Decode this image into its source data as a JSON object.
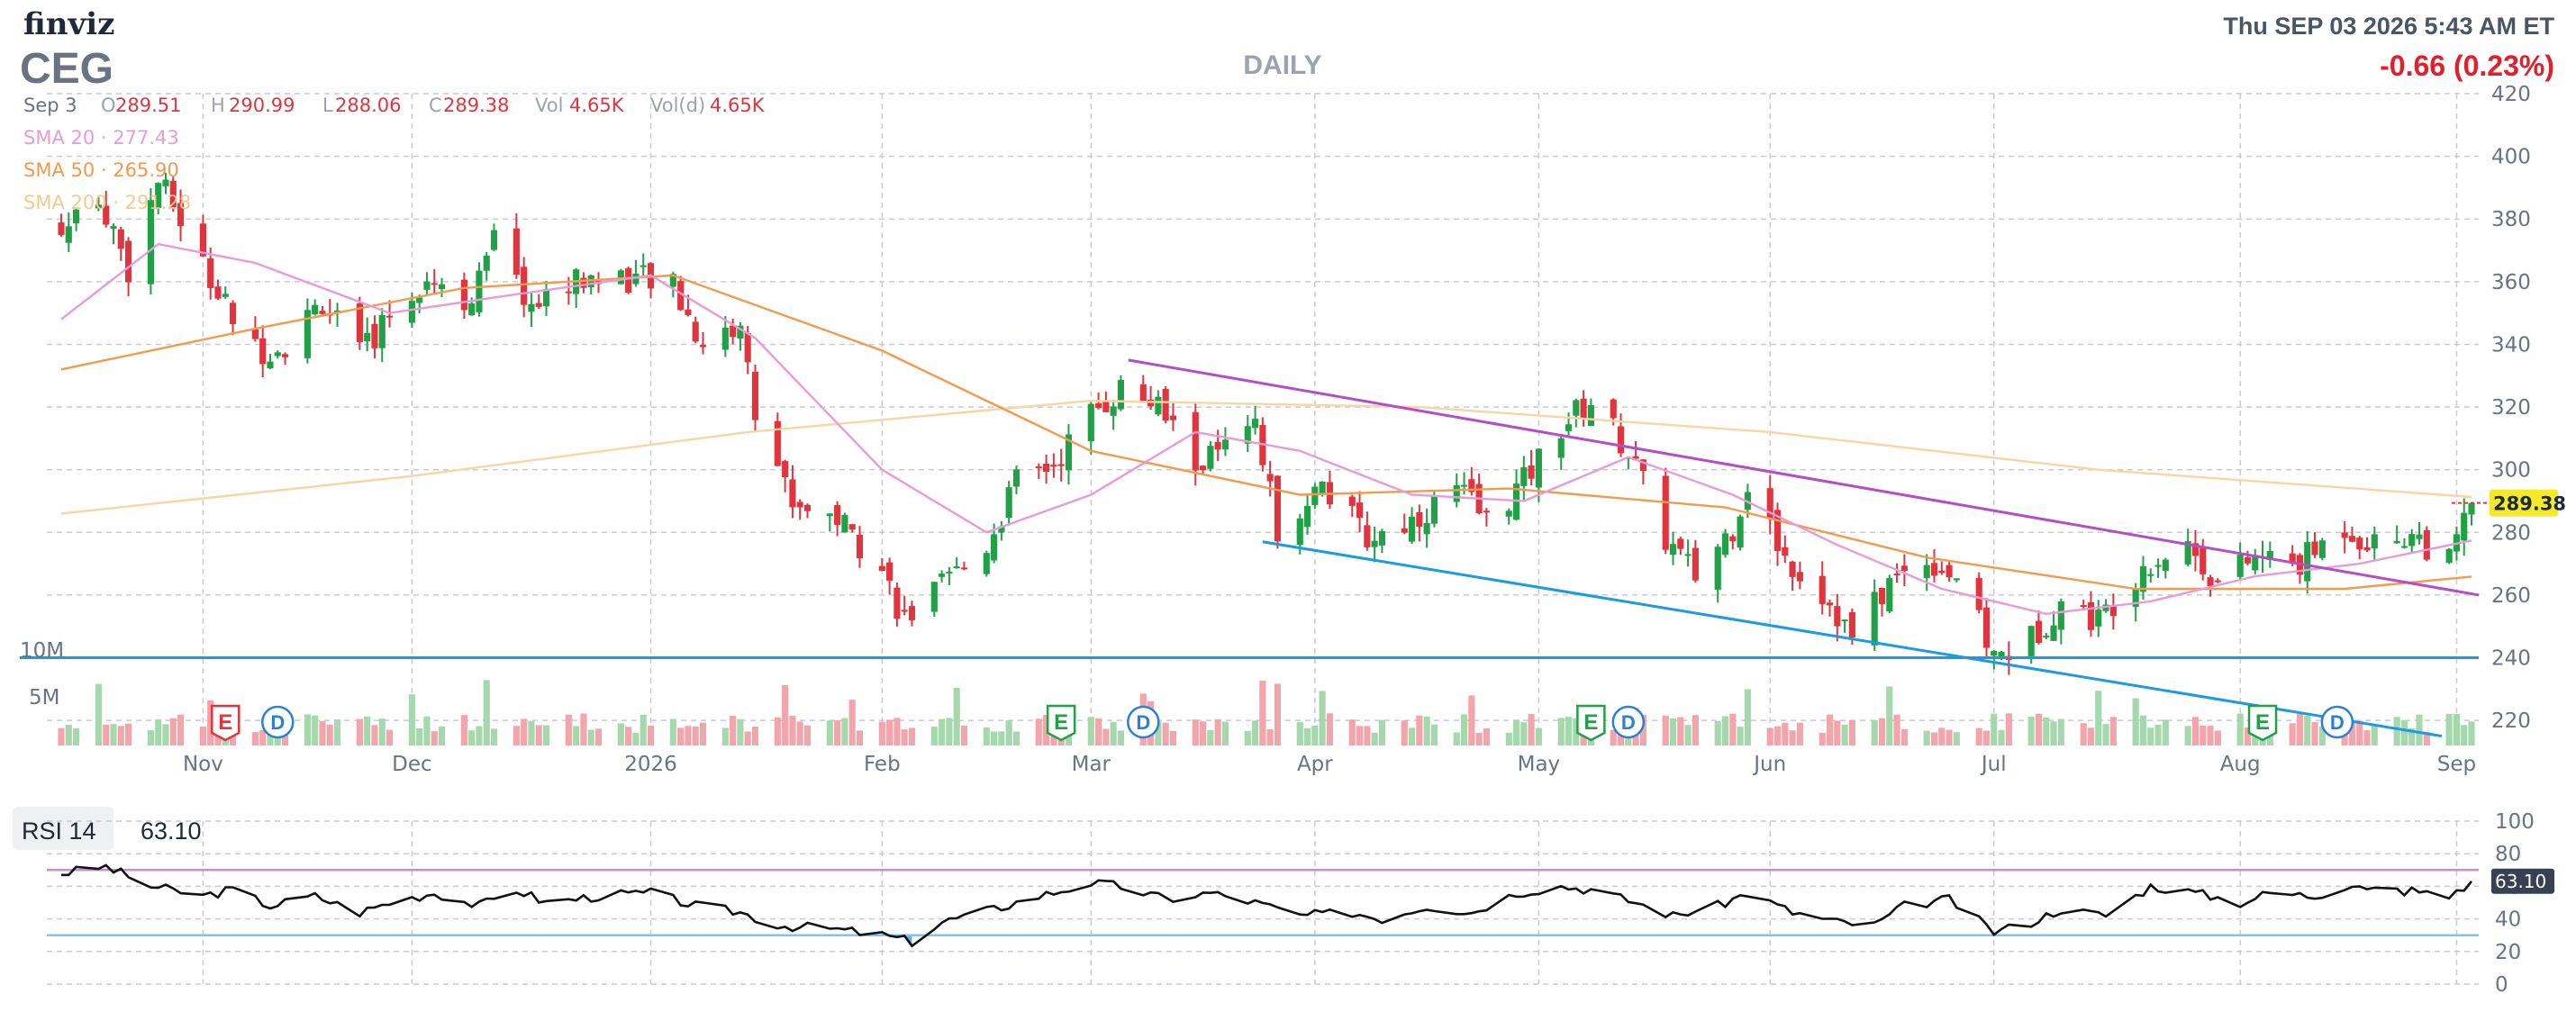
{
  "header": {
    "brand": "finviz",
    "ticker": "CEG",
    "period": "DAILY",
    "datetime": "Thu SEP 03 2026 5:43 AM ET",
    "change": "-0.66 (0.23%)"
  },
  "ohlc": {
    "date": "Sep 3",
    "open_label": "O",
    "open": "289.51",
    "high_label": "H",
    "high": "290.99",
    "low_label": "L",
    "low": "288.06",
    "close_label": "C",
    "close": "289.38",
    "vol_label": "Vol",
    "vol": "4.65K",
    "vold_label": "Vol(d)",
    "vold": "4.65K"
  },
  "sma": [
    {
      "label": "SMA 20",
      "value": "277.43",
      "color": "#e79bd8"
    },
    {
      "label": "SMA 50",
      "value": "265.90",
      "color": "#f29a4e"
    },
    {
      "label": "SMA 200",
      "value": "291.28",
      "color": "#f7d6a3"
    }
  ],
  "rsi": {
    "label": "RSI 14",
    "value": "63.10"
  },
  "colors": {
    "up": "#22a047",
    "down": "#e0353f",
    "vol_up": "#a6d8ae",
    "vol_down": "#f2a5ab",
    "upper_trend": "#b44ec6",
    "lower_trend": "#1e9be0",
    "rsi_line": "#111111",
    "rsi_upper": "#c58fd4",
    "rsi_lower": "#7cc6ea",
    "last_price_bg": "#f5ea2a"
  },
  "chart_data": [
    {
      "type": "candlestick",
      "title": "CEG",
      "subtitle": "DAILY",
      "ylim": [
        212,
        420
      ],
      "y_ticks": [
        420,
        400,
        380,
        360,
        340,
        320,
        300,
        280,
        260,
        240,
        220
      ],
      "x_ticks": [
        {
          "label": "Nov",
          "date": "2025-11-03"
        },
        {
          "label": "Dec",
          "date": "2025-12-01"
        },
        {
          "label": "2026",
          "date": "2026-01-02"
        },
        {
          "label": "Feb",
          "date": "2026-02-02"
        },
        {
          "label": "Mar",
          "date": "2026-03-02"
        },
        {
          "label": "Apr",
          "date": "2026-04-01"
        },
        {
          "label": "May",
          "date": "2026-05-01"
        },
        {
          "label": "Jun",
          "date": "2026-06-01"
        },
        {
          "label": "Jul",
          "date": "2026-07-01"
        },
        {
          "label": "Aug",
          "date": "2026-08-03"
        },
        {
          "label": "Sep",
          "date": "2026-09-01"
        }
      ],
      "price_path": [
        {
          "date": "2025-10-15",
          "close": 375
        },
        {
          "date": "2025-10-20",
          "close": 388
        },
        {
          "date": "2025-10-24",
          "close": 364
        },
        {
          "date": "2025-10-28",
          "close": 392
        },
        {
          "date": "2025-10-31",
          "close": 380
        },
        {
          "date": "2025-11-05",
          "close": 356
        },
        {
          "date": "2025-11-10",
          "close": 338
        },
        {
          "date": "2025-11-14",
          "close": 340
        },
        {
          "date": "2025-11-19",
          "close": 354
        },
        {
          "date": "2025-11-24",
          "close": 336
        },
        {
          "date": "2025-11-28",
          "close": 350
        },
        {
          "date": "2025-12-03",
          "close": 362
        },
        {
          "date": "2025-12-09",
          "close": 354
        },
        {
          "date": "2025-12-12",
          "close": 372
        },
        {
          "date": "2025-12-17",
          "close": 352
        },
        {
          "date": "2025-12-22",
          "close": 360
        },
        {
          "date": "2025-12-29",
          "close": 362
        },
        {
          "date": "2026-01-05",
          "close": 358
        },
        {
          "date": "2026-01-09",
          "close": 340
        },
        {
          "date": "2026-01-14",
          "close": 346
        },
        {
          "date": "2026-01-16",
          "close": 318
        },
        {
          "date": "2026-01-21",
          "close": 290
        },
        {
          "date": "2026-01-27",
          "close": 285
        },
        {
          "date": "2026-02-02",
          "close": 268
        },
        {
          "date": "2026-02-05",
          "close": 252
        },
        {
          "date": "2026-02-10",
          "close": 262
        },
        {
          "date": "2026-02-16",
          "close": 276
        },
        {
          "date": "2026-02-20",
          "close": 296
        },
        {
          "date": "2026-02-25",
          "close": 302
        },
        {
          "date": "2026-03-02",
          "close": 318
        },
        {
          "date": "2026-03-06",
          "close": 326
        },
        {
          "date": "2026-03-11",
          "close": 320
        },
        {
          "date": "2026-03-16",
          "close": 302
        },
        {
          "date": "2026-03-20",
          "close": 306
        },
        {
          "date": "2026-03-24",
          "close": 312
        },
        {
          "date": "2026-03-27",
          "close": 282
        },
        {
          "date": "2026-04-02",
          "close": 295
        },
        {
          "date": "2026-04-08",
          "close": 278
        },
        {
          "date": "2026-04-14",
          "close": 284
        },
        {
          "date": "2026-04-20",
          "close": 294
        },
        {
          "date": "2026-04-24",
          "close": 284
        },
        {
          "date": "2026-04-29",
          "close": 296
        },
        {
          "date": "2026-05-04",
          "close": 314
        },
        {
          "date": "2026-05-08",
          "close": 322
        },
        {
          "date": "2026-05-13",
          "close": 306
        },
        {
          "date": "2026-05-18",
          "close": 278
        },
        {
          "date": "2026-05-22",
          "close": 266
        },
        {
          "date": "2026-05-27",
          "close": 282
        },
        {
          "date": "2026-05-29",
          "close": 296
        },
        {
          "date": "2026-06-03",
          "close": 272
        },
        {
          "date": "2026-06-09",
          "close": 258
        },
        {
          "date": "2026-06-12",
          "close": 246
        },
        {
          "date": "2026-06-17",
          "close": 264
        },
        {
          "date": "2026-06-22",
          "close": 272
        },
        {
          "date": "2026-06-26",
          "close": 266
        },
        {
          "date": "2026-07-01",
          "close": 240
        },
        {
          "date": "2026-07-06",
          "close": 246
        },
        {
          "date": "2026-07-10",
          "close": 258
        },
        {
          "date": "2026-07-15",
          "close": 252
        },
        {
          "date": "2026-07-21",
          "close": 270
        },
        {
          "date": "2026-07-27",
          "close": 276
        },
        {
          "date": "2026-07-31",
          "close": 264
        },
        {
          "date": "2026-08-05",
          "close": 272
        },
        {
          "date": "2026-08-11",
          "close": 270
        },
        {
          "date": "2026-08-17",
          "close": 282
        },
        {
          "date": "2026-08-21",
          "close": 276
        },
        {
          "date": "2026-08-26",
          "close": 280
        },
        {
          "date": "2026-08-31",
          "close": 270
        },
        {
          "date": "2026-09-03",
          "close": 289.38
        }
      ],
      "sma20_path": [
        {
          "date": "2025-10-15",
          "value": 348
        },
        {
          "date": "2025-10-28",
          "value": 372
        },
        {
          "date": "2025-11-10",
          "value": 366
        },
        {
          "date": "2025-11-28",
          "value": 350
        },
        {
          "date": "2025-12-15",
          "value": 356
        },
        {
          "date": "2026-01-02",
          "value": 362
        },
        {
          "date": "2026-01-16",
          "value": 342
        },
        {
          "date": "2026-02-02",
          "value": 300
        },
        {
          "date": "2026-02-16",
          "value": 280
        },
        {
          "date": "2026-03-02",
          "value": 292
        },
        {
          "date": "2026-03-16",
          "value": 312
        },
        {
          "date": "2026-03-30",
          "value": 306
        },
        {
          "date": "2026-04-14",
          "value": 292
        },
        {
          "date": "2026-04-29",
          "value": 290
        },
        {
          "date": "2026-05-13",
          "value": 304
        },
        {
          "date": "2026-05-27",
          "value": 292
        },
        {
          "date": "2026-06-10",
          "value": 276
        },
        {
          "date": "2026-06-24",
          "value": 262
        },
        {
          "date": "2026-07-08",
          "value": 254
        },
        {
          "date": "2026-07-22",
          "value": 258
        },
        {
          "date": "2026-08-05",
          "value": 266
        },
        {
          "date": "2026-08-19",
          "value": 270
        },
        {
          "date": "2026-09-03",
          "value": 277.43
        }
      ],
      "sma50_path": [
        {
          "date": "2025-10-15",
          "value": 332
        },
        {
          "date": "2025-11-10",
          "value": 345
        },
        {
          "date": "2025-12-08",
          "value": 358
        },
        {
          "date": "2026-01-05",
          "value": 362
        },
        {
          "date": "2026-02-02",
          "value": 338
        },
        {
          "date": "2026-03-02",
          "value": 306
        },
        {
          "date": "2026-03-30",
          "value": 292
        },
        {
          "date": "2026-04-27",
          "value": 294
        },
        {
          "date": "2026-05-26",
          "value": 288
        },
        {
          "date": "2026-06-22",
          "value": 272
        },
        {
          "date": "2026-07-20",
          "value": 262
        },
        {
          "date": "2026-08-17",
          "value": 262
        },
        {
          "date": "2026-09-03",
          "value": 265.9
        }
      ],
      "sma200_path": [
        {
          "date": "2025-10-15",
          "value": 286
        },
        {
          "date": "2025-12-01",
          "value": 298
        },
        {
          "date": "2026-01-15",
          "value": 312
        },
        {
          "date": "2026-03-02",
          "value": 322
        },
        {
          "date": "2026-04-15",
          "value": 320
        },
        {
          "date": "2026-06-01",
          "value": 312
        },
        {
          "date": "2026-07-15",
          "value": 300
        },
        {
          "date": "2026-09-03",
          "value": 291.28
        }
      ],
      "trendlines": [
        {
          "from": {
            "date": "2026-03-07",
            "value": 335
          },
          "to": {
            "date": "2026-09-04",
            "value": 260
          }
        },
        {
          "from": {
            "date": "2026-03-25",
            "value": 277
          },
          "to": {
            "date": "2026-08-30",
            "value": 215
          }
        }
      ],
      "horizontal_lines": [
        {
          "value": 240,
          "color": "#1e9be0"
        }
      ],
      "last_price": "289.38",
      "volume_axis": [
        "10M",
        "5M"
      ],
      "events": [
        {
          "label": "E",
          "date": "2025-11-06"
        },
        {
          "label": "D",
          "date": "2025-11-13"
        },
        {
          "label": "E",
          "date": "2026-02-26"
        },
        {
          "label": "D",
          "date": "2026-03-09"
        },
        {
          "label": "E",
          "date": "2026-05-08"
        },
        {
          "label": "D",
          "date": "2026-05-13"
        },
        {
          "label": "E",
          "date": "2026-08-06"
        },
        {
          "label": "D",
          "date": "2026-08-16"
        }
      ]
    },
    {
      "type": "line",
      "title": "RSI 14",
      "ylim": [
        0,
        100
      ],
      "y_ticks": [
        100,
        80,
        60,
        40,
        20,
        0
      ],
      "overbought": 70,
      "oversold": 30,
      "last_value": "63.10",
      "rsi_path": [
        {
          "date": "2025-10-15",
          "value": 68
        },
        {
          "date": "2025-10-21",
          "value": 72
        },
        {
          "date": "2025-10-27",
          "value": 60
        },
        {
          "date": "2025-11-03",
          "value": 54
        },
        {
          "date": "2025-11-07",
          "value": 58
        },
        {
          "date": "2025-11-12",
          "value": 48
        },
        {
          "date": "2025-11-18",
          "value": 54
        },
        {
          "date": "2025-11-24",
          "value": 44
        },
        {
          "date": "2025-11-28",
          "value": 50
        },
        {
          "date": "2025-12-04",
          "value": 56
        },
        {
          "date": "2025-12-10",
          "value": 48
        },
        {
          "date": "2025-12-15",
          "value": 58
        },
        {
          "date": "2025-12-19",
          "value": 50
        },
        {
          "date": "2025-12-26",
          "value": 54
        },
        {
          "date": "2026-01-02",
          "value": 56
        },
        {
          "date": "2026-01-08",
          "value": 48
        },
        {
          "date": "2026-01-14",
          "value": 44
        },
        {
          "date": "2026-01-19",
          "value": 36
        },
        {
          "date": "2026-01-26",
          "value": 34
        },
        {
          "date": "2026-02-02",
          "value": 30
        },
        {
          "date": "2026-02-06",
          "value": 26
        },
        {
          "date": "2026-02-10",
          "value": 38
        },
        {
          "date": "2026-02-17",
          "value": 46
        },
        {
          "date": "2026-02-23",
          "value": 54
        },
        {
          "date": "2026-03-02",
          "value": 62
        },
        {
          "date": "2026-03-06",
          "value": 60
        },
        {
          "date": "2026-03-12",
          "value": 52
        },
        {
          "date": "2026-03-18",
          "value": 56
        },
        {
          "date": "2026-03-24",
          "value": 50
        },
        {
          "date": "2026-03-30",
          "value": 42
        },
        {
          "date": "2026-04-06",
          "value": 44
        },
        {
          "date": "2026-04-10",
          "value": 40
        },
        {
          "date": "2026-04-16",
          "value": 48
        },
        {
          "date": "2026-04-22",
          "value": 44
        },
        {
          "date": "2026-04-28",
          "value": 56
        },
        {
          "date": "2026-05-04",
          "value": 60
        },
        {
          "date": "2026-05-08",
          "value": 58
        },
        {
          "date": "2026-05-14",
          "value": 50
        },
        {
          "date": "2026-05-19",
          "value": 42
        },
        {
          "date": "2026-05-25",
          "value": 48
        },
        {
          "date": "2026-05-29",
          "value": 56
        },
        {
          "date": "2026-06-04",
          "value": 44
        },
        {
          "date": "2026-06-10",
          "value": 38
        },
        {
          "date": "2026-06-15",
          "value": 36
        },
        {
          "date": "2026-06-19",
          "value": 48
        },
        {
          "date": "2026-06-25",
          "value": 52
        },
        {
          "date": "2026-07-01",
          "value": 32
        },
        {
          "date": "2026-07-06",
          "value": 38
        },
        {
          "date": "2026-07-10",
          "value": 46
        },
        {
          "date": "2026-07-16",
          "value": 42
        },
        {
          "date": "2026-07-22",
          "value": 60
        },
        {
          "date": "2026-07-28",
          "value": 56
        },
        {
          "date": "2026-08-03",
          "value": 50
        },
        {
          "date": "2026-08-07",
          "value": 56
        },
        {
          "date": "2026-08-13",
          "value": 54
        },
        {
          "date": "2026-08-18",
          "value": 62
        },
        {
          "date": "2026-08-24",
          "value": 56
        },
        {
          "date": "2026-08-28",
          "value": 58
        },
        {
          "date": "2026-08-31",
          "value": 52
        },
        {
          "date": "2026-09-03",
          "value": 63.1
        }
      ]
    }
  ]
}
